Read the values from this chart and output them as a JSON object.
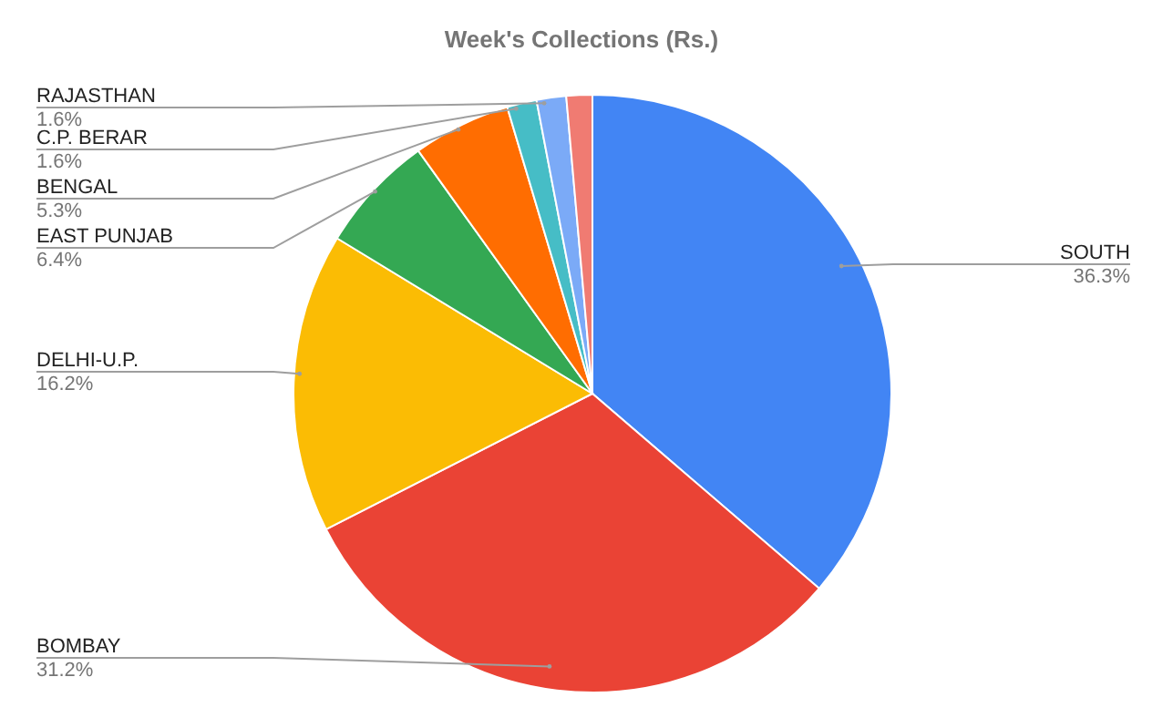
{
  "chart_data": {
    "type": "pie",
    "title": "Week's Collections (Rs.)",
    "categories": [
      "SOUTH",
      "BOMBAY",
      "DELHI-U.P.",
      "EAST PUNJAB",
      "BENGAL",
      "C.P. BERAR",
      "RAJASTHAN",
      null
    ],
    "values": [
      36.3,
      31.2,
      16.2,
      6.4,
      5.3,
      1.6,
      1.6,
      1.4
    ],
    "value_labels": [
      "36.3%",
      "31.2%",
      "16.2%",
      "6.4%",
      "5.3%",
      "1.6%",
      "1.6%",
      null
    ],
    "colors": [
      "#4285f4",
      "#ea4335",
      "#fbbc04",
      "#34a853",
      "#ff6d01",
      "#46bdc6",
      "#7baaf7",
      "#f07b72"
    ]
  }
}
